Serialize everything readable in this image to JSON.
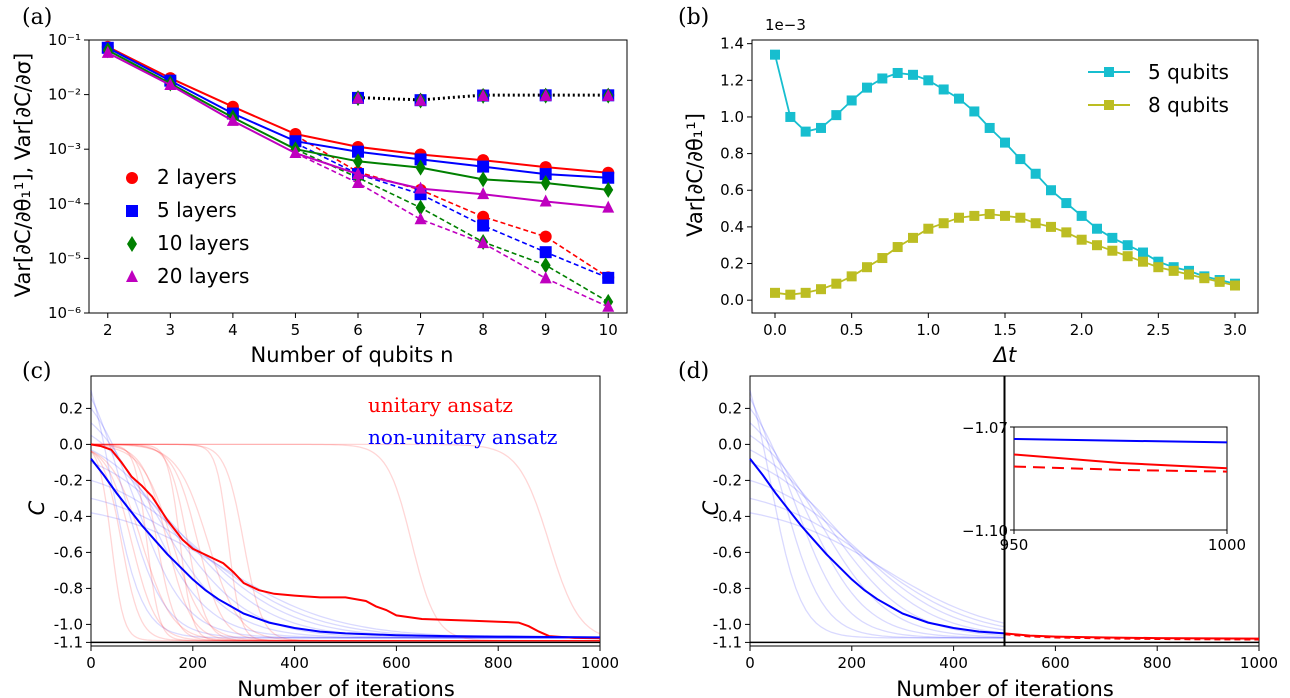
{
  "panel_labels": [
    "(a)",
    "(b)",
    "(c)",
    "(d)"
  ],
  "colors": {
    "red": "#ff0000",
    "blue": "#0000ff",
    "green": "#008000",
    "magenta": "#bf00bf",
    "cyan": "#17becf",
    "olive": "#bcbd22",
    "black": "#000000"
  },
  "chart_data": [
    {
      "panel": "(a)",
      "type": "line",
      "xlabel": "Number of qubits n",
      "ylabel": "Var[∂C/∂θ₁¹], Var[∂C/∂σ]",
      "yscale": "log",
      "xlim": [
        1.7,
        10.3
      ],
      "ylim": [
        1e-06,
        0.1
      ],
      "xticks": [
        2,
        3,
        4,
        5,
        6,
        7,
        8,
        9,
        10
      ],
      "yticks": [
        "10⁻⁶",
        "10⁻⁵",
        "10⁻⁴",
        "10⁻³",
        "10⁻²",
        "10⁻¹"
      ],
      "legend_position": "lower-left",
      "series": [
        {
          "name": "2 layers",
          "marker": "circle",
          "color": "red",
          "solid": {
            "x": [
              2,
              3,
              4,
              5,
              6,
              7,
              8,
              9,
              10
            ],
            "y": [
              0.075,
              0.02,
              0.006,
              0.0019,
              0.0011,
              0.0008,
              0.00063,
              0.00047,
              0.00037
            ]
          },
          "dashed": {
            "x": [
              5,
              6,
              7,
              8,
              9,
              10
            ],
            "y": [
              0.0018,
              0.00038,
              0.00018,
              5.8e-05,
              2.5e-05,
              4.5e-06
            ]
          },
          "sigma": {
            "x": [
              6,
              7,
              8,
              9,
              10
            ],
            "y": [
              0.0088,
              0.008,
              0.0098,
              0.0098,
              0.0098
            ]
          }
        },
        {
          "name": "5 layers",
          "marker": "square",
          "color": "blue",
          "solid": {
            "x": [
              2,
              3,
              4,
              5,
              6,
              7,
              8,
              9,
              10
            ],
            "y": [
              0.072,
              0.018,
              0.0045,
              0.0014,
              0.0009,
              0.00065,
              0.00048,
              0.00035,
              0.0003
            ]
          },
          "dashed": {
            "x": [
              5,
              6,
              7,
              8,
              9,
              10
            ],
            "y": [
              0.0013,
              0.00035,
              0.00015,
              4e-05,
              1.3e-05,
              4.4e-06
            ]
          },
          "sigma": {
            "x": [
              6,
              7,
              8,
              9,
              10
            ],
            "y": [
              0.0087,
              0.0079,
              0.0096,
              0.0097,
              0.0097
            ]
          }
        },
        {
          "name": "10 layers",
          "marker": "diamond",
          "color": "green",
          "solid": {
            "x": [
              2,
              3,
              4,
              5,
              6,
              7,
              8,
              9,
              10
            ],
            "y": [
              0.065,
              0.016,
              0.0038,
              0.001,
              0.0006,
              0.00046,
              0.00028,
              0.00024,
              0.00018
            ]
          },
          "dashed": {
            "x": [
              5,
              6,
              7,
              8,
              9,
              10
            ],
            "y": [
              0.001,
              0.0003,
              8.5e-05,
              2e-05,
              7.5e-06,
              1.6e-06
            ]
          },
          "sigma": {
            "x": [
              6,
              7,
              8,
              9,
              10
            ],
            "y": [
              0.0086,
              0.0078,
              0.0095,
              0.0096,
              0.0096
            ]
          }
        },
        {
          "name": "20 layers",
          "marker": "triangle",
          "color": "magenta",
          "solid": {
            "x": [
              2,
              3,
              4,
              5,
              6,
              7,
              8,
              9,
              10
            ],
            "y": [
              0.058,
              0.015,
              0.0033,
              0.00085,
              0.00035,
              0.00019,
              0.00015,
              0.00011,
              8.5e-05
            ]
          },
          "dashed": {
            "x": [
              5,
              6,
              7,
              8,
              9,
              10
            ],
            "y": [
              0.00085,
              0.00024,
              5.2e-05,
              1.9e-05,
              4.3e-06,
              1.3e-06
            ]
          },
          "sigma": {
            "x": [
              6,
              7,
              8,
              9,
              10
            ],
            "y": [
              0.0085,
              0.0077,
              0.0094,
              0.0095,
              0.0095
            ]
          }
        }
      ]
    },
    {
      "panel": "(b)",
      "type": "line",
      "xlabel": "Δt",
      "ylabel": "Var[∂C/∂θ₁¹]",
      "offset_label": "1e−3",
      "xlim": [
        -0.15,
        3.15
      ],
      "ylim": [
        -0.07,
        1.42
      ],
      "xticks": [
        "0.0",
        "0.5",
        "1.0",
        "1.5",
        "2.0",
        "2.5",
        "3.0"
      ],
      "yticks": [
        "0.0",
        "0.2",
        "0.4",
        "0.6",
        "0.8",
        "1.0",
        "1.2",
        "1.4"
      ],
      "legend_position": "top-right",
      "series": [
        {
          "name": "5 qubits",
          "color": "cyan",
          "marker": "square",
          "x": [
            0.0,
            0.1,
            0.2,
            0.3,
            0.4,
            0.5,
            0.6,
            0.7,
            0.8,
            0.9,
            1.0,
            1.1,
            1.2,
            1.3,
            1.4,
            1.5,
            1.6,
            1.7,
            1.8,
            1.9,
            2.0,
            2.1,
            2.2,
            2.3,
            2.4,
            2.5,
            2.6,
            2.7,
            2.8,
            2.9,
            3.0
          ],
          "y": [
            1.34,
            1.0,
            0.92,
            0.94,
            1.01,
            1.09,
            1.16,
            1.21,
            1.24,
            1.23,
            1.2,
            1.15,
            1.1,
            1.03,
            0.94,
            0.86,
            0.77,
            0.69,
            0.6,
            0.53,
            0.46,
            0.39,
            0.34,
            0.3,
            0.26,
            0.21,
            0.18,
            0.16,
            0.13,
            0.11,
            0.09
          ]
        },
        {
          "name": "8 qubits",
          "color": "olive",
          "marker": "square",
          "x": [
            0.0,
            0.1,
            0.2,
            0.3,
            0.4,
            0.5,
            0.6,
            0.7,
            0.8,
            0.9,
            1.0,
            1.1,
            1.2,
            1.3,
            1.4,
            1.5,
            1.6,
            1.7,
            1.8,
            1.9,
            2.0,
            2.1,
            2.2,
            2.3,
            2.4,
            2.5,
            2.6,
            2.7,
            2.8,
            2.9,
            3.0
          ],
          "y": [
            0.04,
            0.03,
            0.04,
            0.06,
            0.09,
            0.13,
            0.18,
            0.23,
            0.29,
            0.34,
            0.39,
            0.42,
            0.45,
            0.46,
            0.47,
            0.46,
            0.45,
            0.42,
            0.4,
            0.37,
            0.33,
            0.3,
            0.27,
            0.24,
            0.21,
            0.18,
            0.16,
            0.14,
            0.12,
            0.1,
            0.08
          ]
        }
      ]
    },
    {
      "panel": "(c)",
      "type": "line",
      "xlabel": "Number of iterations",
      "ylabel": "C",
      "xlim": [
        0,
        1000
      ],
      "ylim": [
        -1.12,
        0.38
      ],
      "xticks": [
        "0",
        "200",
        "400",
        "600",
        "800",
        "1000"
      ],
      "yticks": [
        "0.2",
        "0.0",
        "-0.2",
        "-0.4",
        "-0.6",
        "-0.8",
        "-1.0",
        "-1.1"
      ],
      "annotations": [
        "unitary ansatz",
        "non-unitary ansatz"
      ],
      "reference_line": -1.1,
      "series": [
        {
          "role": "unitary-mean",
          "color": "red",
          "x": [
            0,
            20,
            40,
            60,
            80,
            100,
            120,
            150,
            180,
            200,
            230,
            260,
            280,
            300,
            330,
            360,
            400,
            450,
            500,
            540,
            560,
            580,
            600,
            650,
            700,
            750,
            800,
            840,
            860,
            880,
            900,
            950,
            1000
          ],
          "y": [
            0.0,
            -0.01,
            -0.03,
            -0.1,
            -0.18,
            -0.23,
            -0.29,
            -0.42,
            -0.53,
            -0.58,
            -0.62,
            -0.66,
            -0.71,
            -0.77,
            -0.81,
            -0.83,
            -0.84,
            -0.85,
            -0.85,
            -0.87,
            -0.9,
            -0.92,
            -0.95,
            -0.97,
            -0.975,
            -0.98,
            -0.985,
            -0.99,
            -1.01,
            -1.04,
            -1.065,
            -1.075,
            -1.077
          ]
        },
        {
          "role": "non-unitary-mean",
          "color": "blue",
          "x": [
            0,
            25,
            50,
            75,
            100,
            125,
            150,
            175,
            200,
            225,
            250,
            275,
            300,
            350,
            400,
            450,
            500,
            600,
            700,
            800,
            900,
            1000
          ],
          "y": [
            -0.08,
            -0.17,
            -0.27,
            -0.36,
            -0.45,
            -0.53,
            -0.61,
            -0.68,
            -0.75,
            -0.81,
            -0.86,
            -0.9,
            -0.94,
            -0.99,
            -1.02,
            -1.04,
            -1.05,
            -1.06,
            -1.065,
            -1.068,
            -1.07,
            -1.072
          ]
        }
      ],
      "faint_unitary_transition_iterations": [
        40,
        60,
        80,
        100,
        110,
        130,
        150,
        160,
        175,
        190,
        210,
        230,
        270,
        300,
        630,
        900
      ],
      "faint_non_unitary_starts": [
        0.3,
        0.26,
        0.2,
        0.12,
        0.05,
        -0.03,
        -0.1,
        -0.2,
        -0.3,
        -0.38
      ]
    },
    {
      "panel": "(d)",
      "type": "line",
      "xlabel": "Number of iterations",
      "ylabel": "C",
      "xlim": [
        0,
        1000
      ],
      "ylim": [
        -1.12,
        0.38
      ],
      "xticks": [
        "0",
        "200",
        "400",
        "600",
        "800",
        "1000"
      ],
      "yticks": [
        "0.2",
        "0.0",
        "-0.2",
        "-0.4",
        "-0.6",
        "-0.8",
        "-1.0",
        "-1.1"
      ],
      "reference_line": -1.1,
      "vertical_line_x": 500,
      "series": [
        {
          "role": "non-unitary-mean",
          "color": "blue",
          "x": [
            0,
            25,
            50,
            75,
            100,
            125,
            150,
            175,
            200,
            225,
            250,
            275,
            300,
            350,
            400,
            450,
            500
          ],
          "y": [
            -0.08,
            -0.17,
            -0.27,
            -0.36,
            -0.45,
            -0.53,
            -0.61,
            -0.68,
            -0.75,
            -0.81,
            -0.86,
            -0.9,
            -0.94,
            -0.99,
            -1.02,
            -1.04,
            -1.05
          ]
        },
        {
          "role": "continuation-solid",
          "color": "red",
          "x": [
            500,
            550,
            600,
            700,
            800,
            900,
            1000
          ],
          "y": [
            -1.05,
            -1.062,
            -1.068,
            -1.073,
            -1.076,
            -1.078,
            -1.079
          ]
        },
        {
          "role": "continuation-dashed",
          "color": "red",
          "x": [
            500,
            550,
            600,
            700,
            800,
            900,
            1000
          ],
          "y": [
            -1.055,
            -1.067,
            -1.073,
            -1.078,
            -1.081,
            -1.083,
            -1.084
          ]
        }
      ],
      "faint_non_unitary_starts": [
        0.3,
        0.26,
        0.2,
        0.12,
        0.05,
        -0.03,
        -0.1,
        -0.2,
        -0.3,
        -0.38
      ],
      "inset": {
        "xlim": [
          950,
          1000
        ],
        "ylim": [
          -1.1,
          -1.07
        ],
        "xticks": [
          "950",
          "1000"
        ],
        "yticks": [
          "−1.07",
          "−1.10"
        ],
        "series": [
          {
            "color": "blue",
            "style": "solid",
            "x": [
              950,
              1000
            ],
            "y": [
              -1.0735,
              -1.0745
            ]
          },
          {
            "color": "red",
            "style": "solid",
            "x": [
              950,
              975,
              1000
            ],
            "y": [
              -1.078,
              -1.0805,
              -1.082
            ]
          },
          {
            "color": "red",
            "style": "dashed",
            "x": [
              950,
              975,
              1000
            ],
            "y": [
              -1.0815,
              -1.0825,
              -1.083
            ]
          }
        ]
      }
    }
  ]
}
